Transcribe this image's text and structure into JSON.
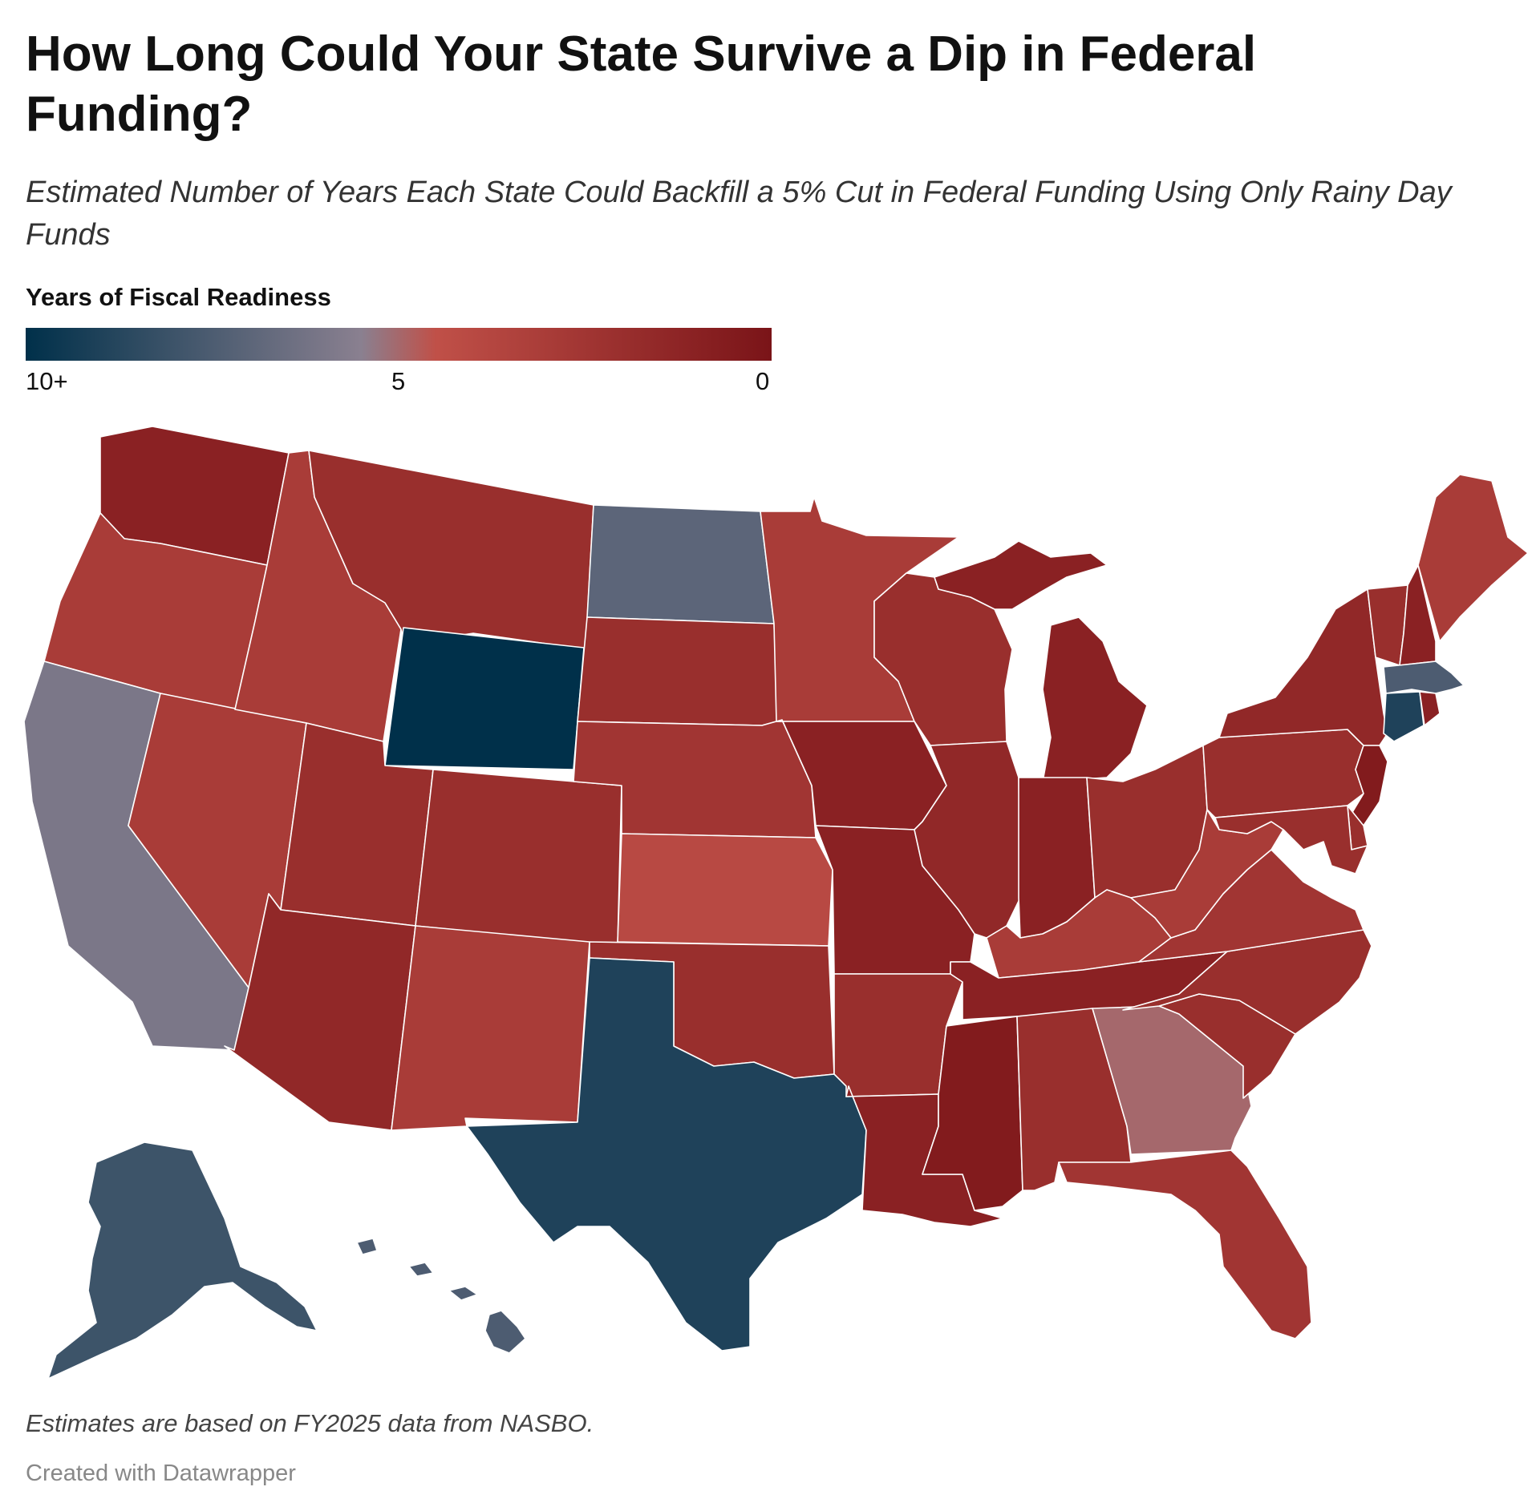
{
  "title": "How Long Could Your State Survive a Dip in Federal Funding?",
  "subtitle": "Estimated Number of Years Each State Could Backfill a 5% Cut in Federal Funding Using Only Rainy Day Funds",
  "legend": {
    "title": "Years of Fiscal Readiness",
    "tick_left": "10+",
    "tick_mid": "5",
    "tick_right": "0",
    "colors": [
      "#00304a",
      "#8a8090",
      "#c05048",
      "#7a1418"
    ]
  },
  "notes": "Estimates are based on FY2025 data from NASBO.",
  "credit": "Created with Datawrapper",
  "chart_data": {
    "type": "choropleth",
    "scale": "Years of Fiscal Readiness",
    "scale_range": [
      10,
      0
    ],
    "states": {
      "WA": 1,
      "OR": 3,
      "CA": 6,
      "NV": 3,
      "ID": 3,
      "MT": 2,
      "WY": 10,
      "UT": 2,
      "AZ": 1.5,
      "CO": 2,
      "NM": 3,
      "ND": 7,
      "SD": 2,
      "NE": 2.5,
      "KS": 4,
      "OK": 2,
      "TX": 9,
      "MN": 3,
      "IA": 1,
      "MO": 1,
      "AR": 2,
      "LA": 1,
      "WI": 2,
      "IL": 1.5,
      "MI": 1,
      "IN": 1,
      "OH": 2,
      "KY": 3,
      "TN": 1,
      "MS": 0.5,
      "AL": 2,
      "GA": 5,
      "FL": 2.5,
      "SC": 2,
      "NC": 2,
      "VA": 2.5,
      "WV": 3,
      "PA": 2,
      "NY": 1.5,
      "VT": 2,
      "NH": 1,
      "ME": 3,
      "MA": 7.5,
      "CT": 9,
      "RI": 1,
      "NJ": 0.5,
      "DE": 2,
      "MD": 2,
      "AK": 8,
      "HI": 7.5
    }
  }
}
